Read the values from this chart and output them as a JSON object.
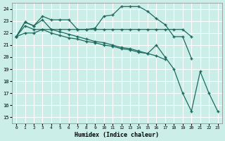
{
  "bg_color": "#cceee8",
  "grid_color": "#ffffff",
  "line_color": "#1a6b5e",
  "xlabel": "Humidex (Indice chaleur)",
  "xlim": [
    -0.5,
    23.5
  ],
  "ylim": [
    14.5,
    24.5
  ],
  "yticks": [
    15,
    16,
    17,
    18,
    19,
    20,
    21,
    22,
    23,
    24
  ],
  "xticks": [
    0,
    1,
    2,
    3,
    4,
    5,
    6,
    7,
    8,
    9,
    10,
    11,
    12,
    13,
    14,
    15,
    16,
    17,
    18,
    19,
    20,
    21,
    22,
    23
  ],
  "series": [
    {
      "x": [
        0,
        1,
        2,
        3,
        4,
        5,
        6,
        7,
        8,
        9,
        10,
        11,
        12,
        13,
        14,
        15,
        16,
        17,
        18,
        19,
        20
      ],
      "y": [
        21.7,
        22.9,
        22.6,
        23.4,
        23.1,
        23.1,
        23.1,
        22.3,
        22.3,
        22.4,
        23.4,
        23.5,
        24.2,
        24.2,
        24.2,
        23.8,
        23.2,
        22.7,
        21.7,
        21.7,
        19.9
      ]
    },
    {
      "x": [
        0,
        1,
        2,
        3,
        4,
        5,
        6,
        7,
        8,
        9,
        10,
        11,
        12,
        13,
        14,
        15,
        16,
        17,
        18,
        19,
        20
      ],
      "y": [
        21.7,
        22.9,
        22.6,
        23.1,
        22.3,
        22.3,
        22.3,
        22.3,
        22.3,
        22.3,
        22.3,
        22.3,
        22.3,
        22.3,
        22.3,
        22.3,
        22.3,
        22.3,
        22.3,
        22.3,
        21.7
      ]
    },
    {
      "x": [
        0,
        1,
        2,
        3,
        4,
        5,
        6,
        7,
        8,
        9,
        10,
        11,
        12,
        13,
        14,
        15,
        16,
        17
      ],
      "y": [
        21.7,
        22.6,
        22.3,
        22.3,
        22.3,
        22.1,
        21.9,
        21.7,
        21.5,
        21.3,
        21.2,
        21.0,
        20.8,
        20.7,
        20.5,
        20.3,
        20.1,
        19.8
      ]
    },
    {
      "x": [
        0,
        1,
        2,
        3,
        4,
        5,
        6,
        7,
        8,
        9,
        10,
        11,
        12,
        13,
        14,
        15,
        16,
        17,
        18,
        19,
        20,
        21,
        22,
        23
      ],
      "y": [
        21.7,
        22.0,
        22.0,
        22.3,
        22.0,
        21.8,
        21.6,
        21.5,
        21.3,
        21.2,
        21.0,
        20.9,
        20.7,
        20.6,
        20.4,
        20.3,
        21.0,
        20.0,
        19.0,
        17.0,
        15.5,
        18.8,
        17.0,
        15.5
      ]
    }
  ]
}
